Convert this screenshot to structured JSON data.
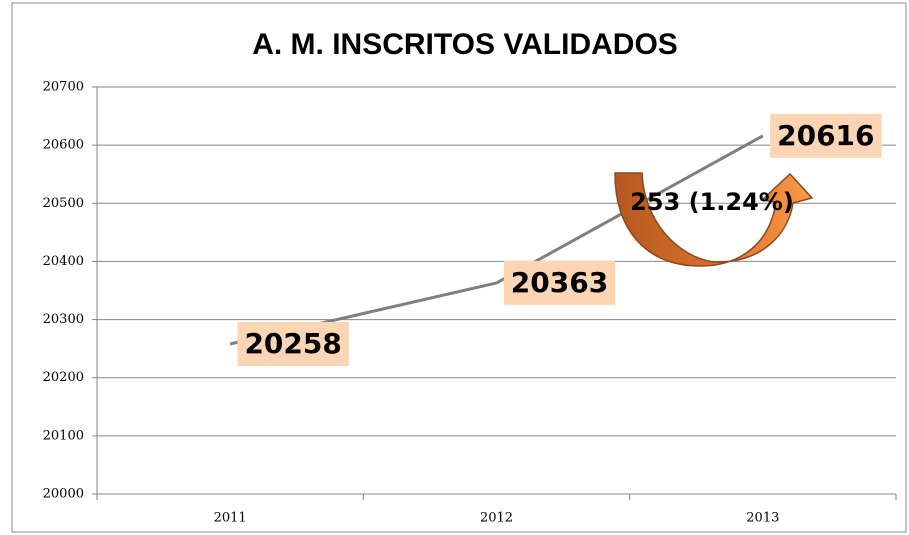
{
  "chart_data": {
    "type": "line",
    "title": "A. M. INSCRITOS VALIDADOS",
    "categories": [
      "2011",
      "2012",
      "2013"
    ],
    "series": [
      {
        "color": "#7f7f7f",
        "values": [
          20258,
          20363,
          20616
        ]
      }
    ],
    "ylim": [
      20000,
      20700
    ],
    "yticks": [
      20000,
      20100,
      20200,
      20300,
      20400,
      20500,
      20600,
      20700
    ],
    "grid": true,
    "label_background": "#fcd5b5",
    "annotation": "253 (1.24%)"
  }
}
